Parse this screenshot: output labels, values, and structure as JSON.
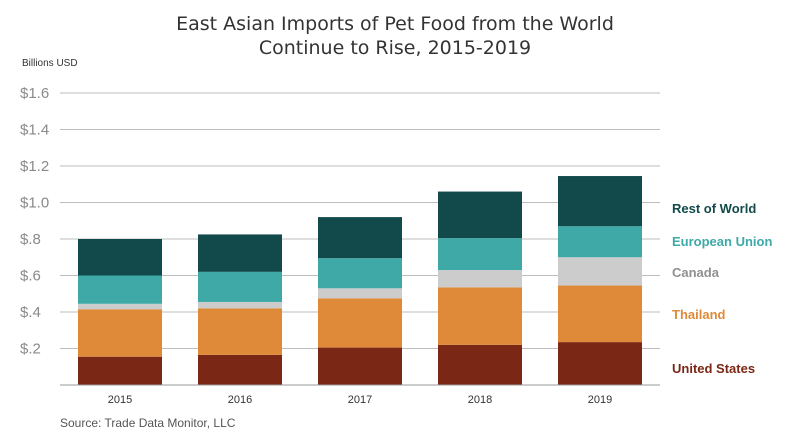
{
  "chart_data": {
    "type": "bar",
    "stacked": true,
    "title": "East Asian Imports of Pet Food from the World",
    "subtitle": "Continue to Rise, 2015-2019",
    "ylabel": "Billions USD",
    "source": "Source: Trade Data Monitor, LLC",
    "categories": [
      "2015",
      "2016",
      "2017",
      "2018",
      "2019"
    ],
    "ylim": [
      0,
      1.6
    ],
    "yticks": [
      {
        "value": 0.2,
        "label": "$.2"
      },
      {
        "value": 0.4,
        "label": "$.4"
      },
      {
        "value": 0.6,
        "label": "$.6"
      },
      {
        "value": 0.8,
        "label": "$.8"
      },
      {
        "value": 1.0,
        "label": "$1.0"
      },
      {
        "value": 1.2,
        "label": "$1.2"
      },
      {
        "value": 1.4,
        "label": "$1.4"
      },
      {
        "value": 1.6,
        "label": "$1.6"
      }
    ],
    "grid": true,
    "legend_position": "right",
    "series": [
      {
        "name": "United States",
        "color": "#7b2716",
        "values": [
          0.155,
          0.165,
          0.205,
          0.22,
          0.235
        ]
      },
      {
        "name": "Thailand",
        "color": "#de8a38",
        "values": [
          0.26,
          0.255,
          0.27,
          0.315,
          0.31
        ]
      },
      {
        "name": "Canada",
        "color": "#cccccc",
        "values": [
          0.03,
          0.035,
          0.055,
          0.095,
          0.155
        ]
      },
      {
        "name": "European Union",
        "color": "#3fa9a7",
        "values": [
          0.155,
          0.165,
          0.165,
          0.175,
          0.17
        ]
      },
      {
        "name": "Rest of World",
        "color": "#124a4b",
        "values": [
          0.2,
          0.205,
          0.225,
          0.255,
          0.275
        ]
      }
    ]
  }
}
